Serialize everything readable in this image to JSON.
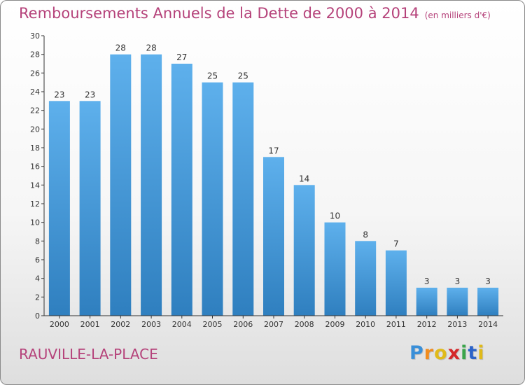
{
  "page": {
    "title": "Remboursements Annuels de la Dette de 2000 à 2014",
    "subtitle": "(en milliers d'€)",
    "town": "RAUVILLE-LA-PLACE",
    "logo": {
      "letters": [
        "P",
        "r",
        "o",
        "x",
        "i",
        "t",
        "i"
      ],
      "colors": [
        "#3a8fd8",
        "#f08c1e",
        "#e0ba1a",
        "#d4282a",
        "#3aa54a",
        "#2b63c9",
        "#e0ba1a"
      ]
    }
  },
  "chart_data": {
    "type": "bar",
    "title": "Remboursements Annuels de la Dette de 2000 à 2014",
    "subtitle": "(en milliers d'€)",
    "categories": [
      "2000",
      "2001",
      "2002",
      "2003",
      "2004",
      "2005",
      "2006",
      "2007",
      "2008",
      "2009",
      "2010",
      "2011",
      "2012",
      "2013",
      "2014"
    ],
    "values": [
      23,
      23,
      28,
      28,
      27,
      25,
      25,
      17,
      14,
      10,
      8,
      7,
      3,
      3,
      3
    ],
    "ylim": [
      0,
      30
    ],
    "yticks": [
      0,
      2,
      4,
      6,
      8,
      10,
      12,
      14,
      16,
      18,
      20,
      22,
      24,
      26,
      28,
      30
    ],
    "grid": false,
    "legend": "none",
    "colors": {
      "bar_top": "#5eb0ec",
      "bar_bottom": "#2f7fbf",
      "axis": "#333333"
    }
  }
}
